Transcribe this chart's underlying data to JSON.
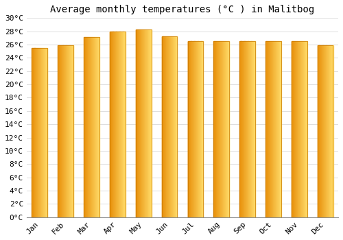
{
  "months": [
    "Jan",
    "Feb",
    "Mar",
    "Apr",
    "May",
    "Jun",
    "Jul",
    "Aug",
    "Sep",
    "Oct",
    "Nov",
    "Dec"
  ],
  "values": [
    25.5,
    25.9,
    27.1,
    28.0,
    28.3,
    27.2,
    26.5,
    26.5,
    26.5,
    26.5,
    26.5,
    25.9
  ],
  "bar_color_left": "#E8900A",
  "bar_color_right": "#FFD966",
  "bar_edge_color": "#C87800",
  "title": "Average monthly temperatures (°C ) in Malitbog",
  "ylim": [
    0,
    30
  ],
  "ytick_step": 2,
  "background_color": "#ffffff",
  "plot_bg_color": "#ffffff",
  "grid_color": "#dddddd",
  "title_fontsize": 10,
  "tick_fontsize": 8,
  "title_font": "monospace",
  "tick_font": "monospace",
  "bar_width": 0.6,
  "gradient_steps": 50
}
